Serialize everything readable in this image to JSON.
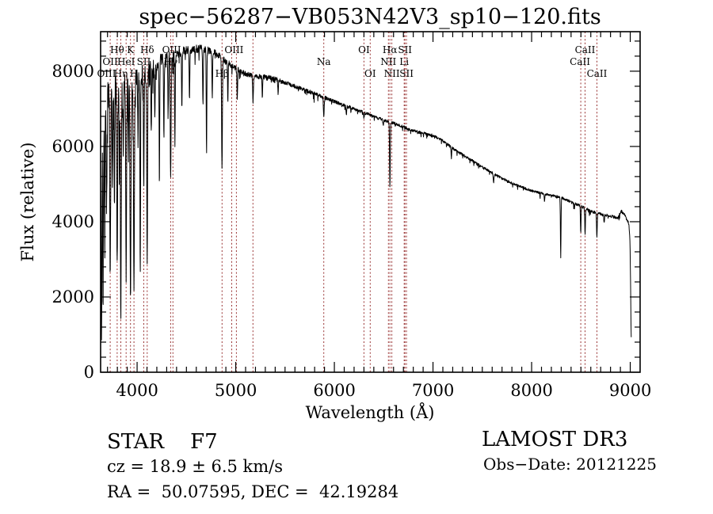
{
  "title": "spec−56287−VB053N42V3_sp10−120.fits",
  "annotations": {
    "class_line": "STAR    F7",
    "cz_line": "cz = 18.9 ± 6.5 km/s",
    "coord_line": "RA =  50.07595, DEC =  42.19284",
    "survey": "LAMOST DR3",
    "obs_date": "Obs−Date: 20121225"
  },
  "colors": {
    "spectrum": "#000000",
    "line_marker": "#993333",
    "frame": "#000000",
    "background": "#ffffff"
  },
  "chart_data": {
    "type": "line",
    "title": "spec−56287−VB053N42V3_sp10−120.fits",
    "xlabel": "Wavelength (Å)",
    "ylabel": "Flux (relative)",
    "xlim": [
      3630,
      9100
    ],
    "ylim": [
      0,
      9050
    ],
    "x_major_ticks": [
      4000,
      5000,
      6000,
      7000,
      8000,
      9000
    ],
    "y_major_ticks": [
      0,
      2000,
      4000,
      6000,
      8000
    ],
    "x_minor_step": 100,
    "y_minor_step": 400,
    "grid": false,
    "line_markers": [
      3727,
      3798,
      3835,
      3889,
      3933,
      3968,
      4068,
      4102,
      4340,
      4363,
      4861,
      4959,
      5007,
      5175,
      5893,
      6300,
      6363,
      6548,
      6563,
      6583,
      6708,
      6716,
      6731,
      8498,
      8542,
      8662
    ],
    "line_labels": [
      {
        "text": "Hθ",
        "row": 1,
        "wl": 3798
      },
      {
        "text": "K",
        "row": 1,
        "wl": 3933
      },
      {
        "text": "Hδ",
        "row": 1,
        "wl": 4102
      },
      {
        "text": "OIII",
        "row": 1,
        "wl": 4350
      },
      {
        "text": "OIII",
        "row": 1,
        "wl": 4983
      },
      {
        "text": "OI",
        "row": 1,
        "wl": 6300
      },
      {
        "text": "Hα",
        "row": 1,
        "wl": 6563
      },
      {
        "text": "SII",
        "row": 1,
        "wl": 6716
      },
      {
        "text": "CaII",
        "row": 1,
        "wl": 8542
      },
      {
        "text": "OII",
        "row": 2,
        "wl": 3727
      },
      {
        "text": "HeI",
        "row": 2,
        "wl": 3889
      },
      {
        "text": "SII",
        "row": 2,
        "wl": 4068
      },
      {
        "text": "Hγ",
        "row": 2,
        "wl": 4340
      },
      {
        "text": "Na",
        "row": 2,
        "wl": 5893
      },
      {
        "text": "NII",
        "row": 2,
        "wl": 6548
      },
      {
        "text": "Li",
        "row": 2,
        "wl": 6708
      },
      {
        "text": "CaII",
        "row": 2,
        "wl": 8490
      },
      {
        "text": "OIII",
        "row": 3,
        "wl": 3690
      },
      {
        "text": "Hη",
        "row": 3,
        "wl": 3835
      },
      {
        "text": "H",
        "row": 3,
        "wl": 3968
      },
      {
        "text": "Hβ",
        "row": 3,
        "wl": 4861
      },
      {
        "text": "OI",
        "row": 3,
        "wl": 6363
      },
      {
        "text": "NII",
        "row": 3,
        "wl": 6583
      },
      {
        "text": "SII",
        "row": 3,
        "wl": 6731
      },
      {
        "text": "CaII",
        "row": 3,
        "wl": 8662
      }
    ],
    "continuum": [
      [
        3630,
        5200
      ],
      [
        3645,
        5600
      ],
      [
        3660,
        6400
      ],
      [
        3680,
        7000
      ],
      [
        3700,
        7300
      ],
      [
        3740,
        7500
      ],
      [
        3780,
        7500
      ],
      [
        3820,
        7550
      ],
      [
        3860,
        7650
      ],
      [
        3900,
        7750
      ],
      [
        3940,
        7650
      ],
      [
        3980,
        7700
      ],
      [
        4020,
        7800
      ],
      [
        4060,
        7950
      ],
      [
        4100,
        8000
      ],
      [
        4150,
        8100
      ],
      [
        4200,
        8200
      ],
      [
        4250,
        8300
      ],
      [
        4300,
        8350
      ],
      [
        4360,
        8400
      ],
      [
        4420,
        8500
      ],
      [
        4480,
        8550
      ],
      [
        4540,
        8550
      ],
      [
        4600,
        8600
      ],
      [
        4660,
        8600
      ],
      [
        4720,
        8550
      ],
      [
        4780,
        8500
      ],
      [
        4840,
        8400
      ],
      [
        4900,
        8250
      ],
      [
        4960,
        8150
      ],
      [
        5020,
        8050
      ],
      [
        5080,
        7950
      ],
      [
        5140,
        7900
      ],
      [
        5200,
        7850
      ],
      [
        5320,
        7850
      ],
      [
        5400,
        7800
      ],
      [
        5500,
        7700
      ],
      [
        5600,
        7600
      ],
      [
        5700,
        7500
      ],
      [
        5800,
        7400
      ],
      [
        5900,
        7300
      ],
      [
        6000,
        7200
      ],
      [
        6100,
        7100
      ],
      [
        6200,
        7000
      ],
      [
        6300,
        6900
      ],
      [
        6400,
        6800
      ],
      [
        6500,
        6700
      ],
      [
        6600,
        6620
      ],
      [
        6700,
        6520
      ],
      [
        6800,
        6420
      ],
      [
        6900,
        6350
      ],
      [
        7000,
        6300
      ],
      [
        7100,
        6150
      ],
      [
        7200,
        5950
      ],
      [
        7300,
        5780
      ],
      [
        7400,
        5620
      ],
      [
        7500,
        5450
      ],
      [
        7600,
        5300
      ],
      [
        7700,
        5150
      ],
      [
        7800,
        5020
      ],
      [
        7900,
        4920
      ],
      [
        8000,
        4820
      ],
      [
        8100,
        4760
      ],
      [
        8200,
        4700
      ],
      [
        8300,
        4650
      ],
      [
        8400,
        4520
      ],
      [
        8500,
        4420
      ],
      [
        8600,
        4280
      ],
      [
        8700,
        4200
      ],
      [
        8800,
        4150
      ],
      [
        8870,
        4100
      ],
      [
        8910,
        4280
      ],
      [
        8950,
        4150
      ],
      [
        8985,
        3950
      ],
      [
        8997,
        3500
      ],
      [
        9003,
        2500
      ],
      [
        9008,
        1300
      ],
      [
        9012,
        700
      ]
    ],
    "absorption_dips": [
      [
        3640,
        700,
        3
      ],
      [
        3655,
        1600,
        3
      ],
      [
        3672,
        3200,
        3
      ],
      [
        3690,
        4000,
        3
      ],
      [
        3727,
        2500,
        4
      ],
      [
        3750,
        4800,
        3
      ],
      [
        3770,
        4400,
        3
      ],
      [
        3798,
        3000,
        4
      ],
      [
        3820,
        5200,
        3
      ],
      [
        3835,
        1350,
        4
      ],
      [
        3860,
        5500,
        3
      ],
      [
        3889,
        2500,
        4
      ],
      [
        3912,
        5600,
        3
      ],
      [
        3933,
        1900,
        4.5
      ],
      [
        3968,
        2200,
        4.5
      ],
      [
        4009,
        6200,
        3
      ],
      [
        4032,
        2600,
        3
      ],
      [
        4068,
        4700,
        3
      ],
      [
        4102,
        2900,
        4
      ],
      [
        4144,
        6200,
        3
      ],
      [
        4180,
        6800,
        3
      ],
      [
        4226,
        4800,
        3
      ],
      [
        4272,
        6300,
        3
      ],
      [
        4315,
        6900,
        3
      ],
      [
        4340,
        5100,
        4
      ],
      [
        4383,
        5900,
        3
      ],
      [
        4454,
        6900,
        3
      ],
      [
        4531,
        7200,
        3
      ],
      [
        4668,
        7000,
        3
      ],
      [
        4704,
        5800,
        3
      ],
      [
        4762,
        7200,
        3
      ],
      [
        4861,
        5400,
        4
      ],
      [
        4920,
        7200,
        3
      ],
      [
        5015,
        7200,
        3
      ],
      [
        5175,
        7200,
        4
      ],
      [
        5270,
        7300,
        3
      ],
      [
        5430,
        7400,
        3
      ],
      [
        5893,
        6800,
        4
      ],
      [
        6122,
        6850,
        3
      ],
      [
        6300,
        6750,
        3
      ],
      [
        6495,
        6550,
        3
      ],
      [
        6563,
        4900,
        3.5
      ],
      [
        7186,
        5700,
        3
      ],
      [
        7615,
        5050,
        4
      ],
      [
        8130,
        4550,
        3
      ],
      [
        8295,
        3050,
        3
      ],
      [
        8434,
        4350,
        3
      ],
      [
        8498,
        3680,
        3
      ],
      [
        8542,
        3640,
        3
      ],
      [
        8662,
        3600,
        3.5
      ],
      [
        8736,
        3950,
        3
      ]
    ],
    "noise_profile": [
      [
        3630,
        2600
      ],
      [
        3660,
        2200
      ],
      [
        3700,
        1500
      ],
      [
        3750,
        1300
      ],
      [
        3800,
        1300
      ],
      [
        3850,
        1200
      ],
      [
        3900,
        1100
      ],
      [
        3950,
        1000
      ],
      [
        4000,
        900
      ],
      [
        4100,
        700
      ],
      [
        4200,
        550
      ],
      [
        4300,
        450
      ],
      [
        4400,
        380
      ],
      [
        4500,
        330
      ],
      [
        4700,
        280
      ],
      [
        4900,
        230
      ],
      [
        5100,
        200
      ],
      [
        5300,
        180
      ],
      [
        5600,
        150
      ],
      [
        6000,
        130
      ],
      [
        6500,
        110
      ],
      [
        7000,
        100
      ],
      [
        7500,
        95
      ],
      [
        8000,
        90
      ],
      [
        8600,
        100
      ],
      [
        9012,
        120
      ]
    ]
  }
}
